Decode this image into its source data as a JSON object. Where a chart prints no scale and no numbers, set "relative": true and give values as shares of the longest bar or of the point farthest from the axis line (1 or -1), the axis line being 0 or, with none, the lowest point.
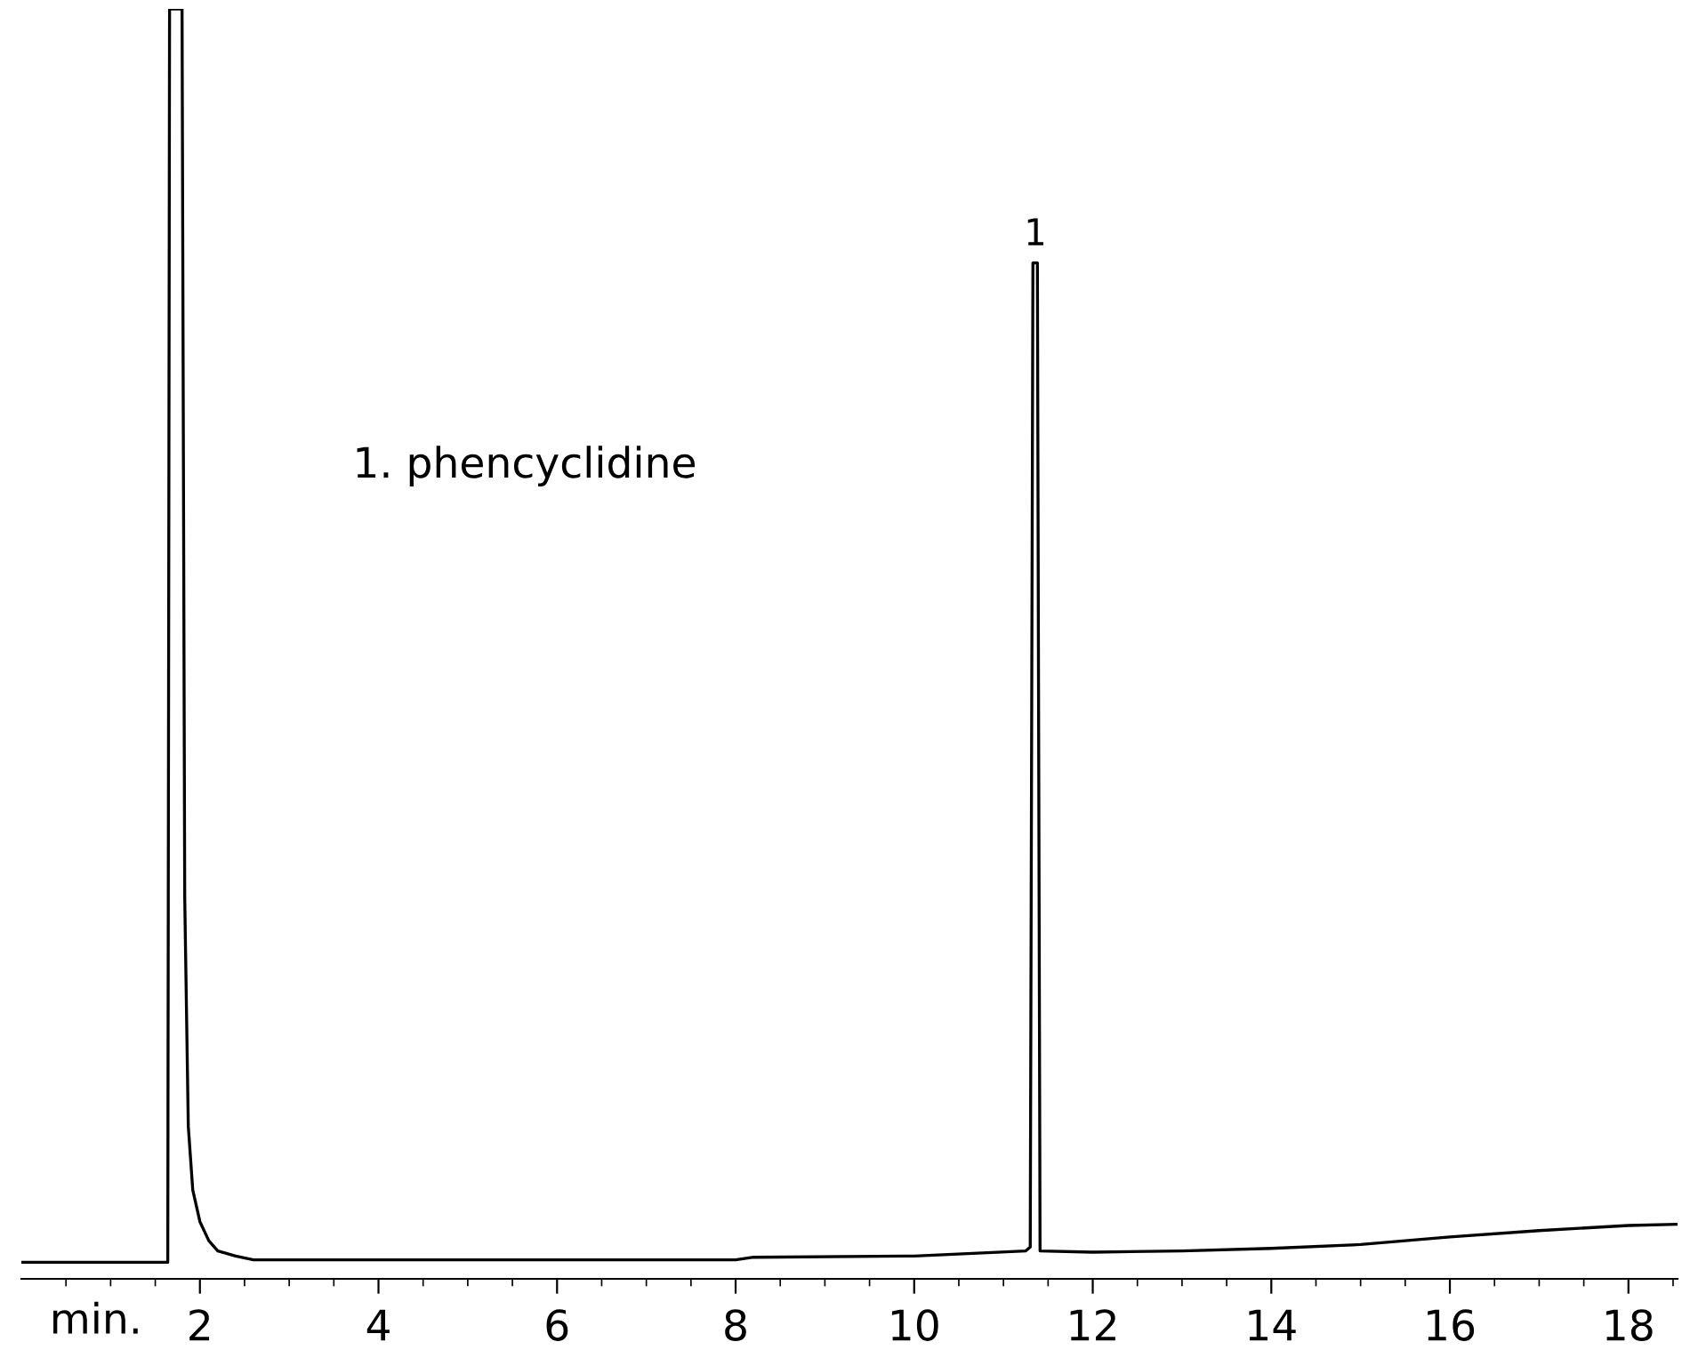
{
  "chart_data": {
    "type": "line",
    "relative": true,
    "xlabel": "min.",
    "color": "#000000",
    "x": [
      0.0,
      1.6,
      1.64,
      1.66,
      1.8,
      1.83,
      1.87,
      1.92,
      2.0,
      2.1,
      2.2,
      2.4,
      2.6,
      4,
      6,
      8,
      8.2,
      10,
      11.25,
      11.3,
      11.33,
      11.38,
      11.41,
      12,
      13,
      14,
      15,
      16,
      17,
      18,
      18.55
    ],
    "values": [
      0.013,
      0.013,
      0.013,
      1.0,
      1.0,
      0.3,
      0.12,
      0.07,
      0.045,
      0.03,
      0.022,
      0.018,
      0.015,
      0.015,
      0.015,
      0.015,
      0.017,
      0.018,
      0.022,
      0.025,
      0.8,
      0.8,
      0.022,
      0.021,
      0.022,
      0.024,
      0.027,
      0.033,
      0.038,
      0.042,
      0.043
    ],
    "xlim": [
      0,
      18.55
    ],
    "xticks": [
      {
        "value": 0.5,
        "label": null
      },
      {
        "value": 1,
        "label": null
      },
      {
        "value": 1.5,
        "label": null
      },
      2,
      {
        "value": 2.5,
        "label": null
      },
      {
        "value": 3,
        "label": null
      },
      {
        "value": 3.5,
        "label": null
      },
      4,
      {
        "value": 4.5,
        "label": null
      },
      {
        "value": 5,
        "label": null
      },
      {
        "value": 5.5,
        "label": null
      },
      6,
      {
        "value": 6.5,
        "label": null
      },
      {
        "value": 7,
        "label": null
      },
      {
        "value": 7.5,
        "label": null
      },
      8,
      {
        "value": 8.5,
        "label": null
      },
      {
        "value": 9,
        "label": null
      },
      {
        "value": 9.5,
        "label": null
      },
      10,
      {
        "value": 10.5,
        "label": null
      },
      {
        "value": 11,
        "label": null
      },
      {
        "value": 11.5,
        "label": null
      },
      12,
      {
        "value": 12.5,
        "label": null
      },
      {
        "value": 13,
        "label": null
      },
      {
        "value": 13.5,
        "label": null
      },
      14,
      {
        "value": 14.5,
        "label": null
      },
      {
        "value": 15,
        "label": null
      },
      {
        "value": 15.5,
        "label": null
      },
      16,
      {
        "value": 16.5,
        "label": null
      },
      {
        "value": 17,
        "label": null
      },
      {
        "value": 17.5,
        "label": null
      },
      18,
      {
        "value": 18.5,
        "label": null
      }
    ],
    "tick_labels": "x",
    "grid": false,
    "legend": false,
    "annotations": [
      {
        "text": "1",
        "x": 11.35,
        "y": 0.8
      },
      "1. phencyclidine"
    ]
  }
}
